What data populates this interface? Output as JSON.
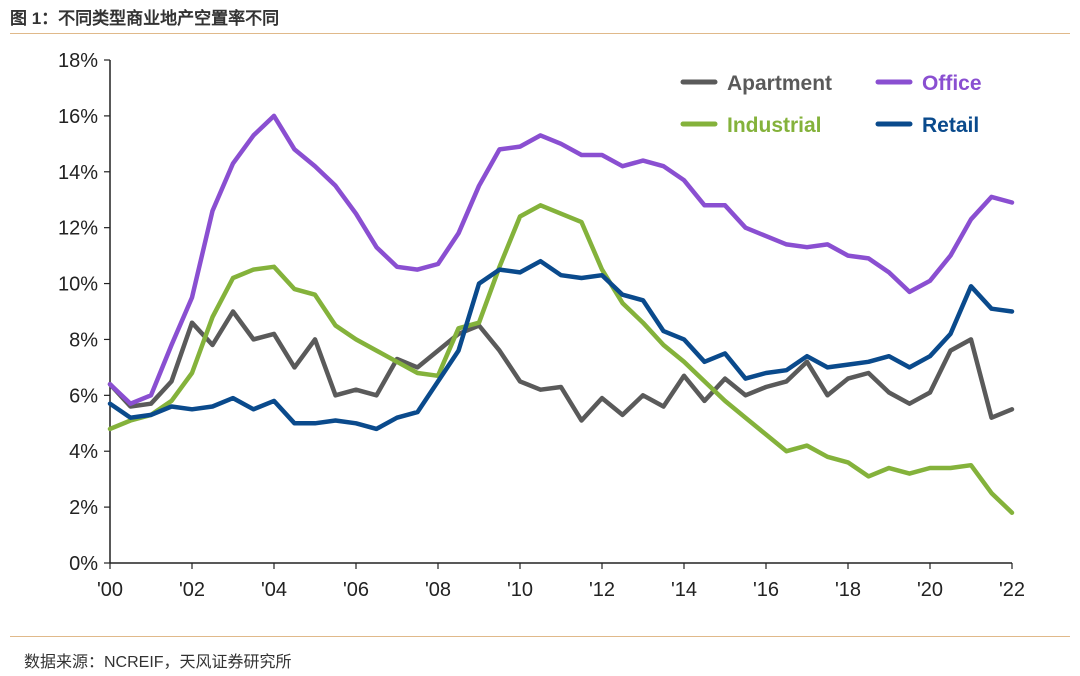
{
  "figure_title": "图 1：不同类型商业地产空置率不同",
  "source": "数据来源：NCREIF，天风证券研究所",
  "chart_data": {
    "type": "line",
    "title": "",
    "xlabel": "",
    "ylabel": "",
    "xlim": [
      2000,
      2022
    ],
    "ylim": [
      0,
      18
    ],
    "x_ticks": [
      2000,
      2002,
      2004,
      2006,
      2008,
      2010,
      2012,
      2014,
      2016,
      2018,
      2020,
      2022
    ],
    "x_tick_labels": [
      "'00",
      "'02",
      "'04",
      "'06",
      "'08",
      "'10",
      "'12",
      "'14",
      "'16",
      "'18",
      "'20",
      "'22"
    ],
    "y_ticks": [
      0,
      2,
      4,
      6,
      8,
      10,
      12,
      14,
      16,
      18
    ],
    "y_tick_labels": [
      "0%",
      "2%",
      "4%",
      "6%",
      "8%",
      "10%",
      "12%",
      "14%",
      "16%",
      "18%"
    ],
    "grid": false,
    "legend_position": "top-right",
    "x": [
      2000.0,
      2000.5,
      2001.0,
      2001.5,
      2002.0,
      2002.5,
      2003.0,
      2003.5,
      2004.0,
      2004.5,
      2005.0,
      2005.5,
      2006.0,
      2006.5,
      2007.0,
      2007.5,
      2008.0,
      2008.5,
      2009.0,
      2009.5,
      2010.0,
      2010.5,
      2011.0,
      2011.5,
      2012.0,
      2012.5,
      2013.0,
      2013.5,
      2014.0,
      2014.5,
      2015.0,
      2015.5,
      2016.0,
      2016.5,
      2017.0,
      2017.5,
      2018.0,
      2018.5,
      2019.0,
      2019.5,
      2020.0,
      2020.5,
      2021.0,
      2021.5,
      2022.0
    ],
    "series": [
      {
        "name": "Apartment",
        "color": "#5a5a5a",
        "values": [
          6.4,
          5.6,
          5.7,
          6.5,
          8.6,
          7.8,
          9.0,
          8.0,
          8.2,
          7.0,
          8.0,
          6.0,
          6.2,
          6.0,
          7.3,
          7.0,
          7.6,
          8.2,
          8.5,
          7.6,
          6.5,
          6.2,
          6.3,
          5.1,
          5.9,
          5.3,
          6.0,
          5.6,
          6.7,
          5.8,
          6.6,
          6.0,
          6.3,
          6.5,
          7.2,
          6.0,
          6.6,
          6.8,
          6.1,
          5.7,
          6.1,
          7.6,
          8.0,
          5.2,
          5.5
        ]
      },
      {
        "name": "Office",
        "color": "#8a4fd1",
        "values": [
          6.4,
          5.7,
          6.0,
          7.8,
          9.5,
          12.6,
          14.3,
          15.3,
          16.0,
          14.8,
          14.2,
          13.5,
          12.5,
          11.3,
          10.6,
          10.5,
          10.7,
          11.8,
          13.5,
          14.8,
          14.9,
          15.3,
          15.0,
          14.6,
          14.6,
          14.2,
          14.4,
          14.2,
          13.7,
          12.8,
          12.8,
          12.0,
          11.7,
          11.4,
          11.3,
          11.4,
          11.0,
          10.9,
          10.4,
          9.7,
          10.1,
          11.0,
          12.3,
          13.1,
          12.9
        ]
      },
      {
        "name": "Industrial",
        "color": "#84b23b",
        "values": [
          4.8,
          5.1,
          5.3,
          5.8,
          6.8,
          8.8,
          10.2,
          10.5,
          10.6,
          9.8,
          9.6,
          8.5,
          8.0,
          7.6,
          7.2,
          6.8,
          6.7,
          8.4,
          8.6,
          10.6,
          12.4,
          12.8,
          12.5,
          12.2,
          10.5,
          9.3,
          8.6,
          7.8,
          7.2,
          6.5,
          5.8,
          5.2,
          4.6,
          4.0,
          4.2,
          3.8,
          3.6,
          3.1,
          3.4,
          3.2,
          3.4,
          3.4,
          3.5,
          2.5,
          1.8
        ]
      },
      {
        "name": "Retail",
        "color": "#0a4a8c",
        "values": [
          5.7,
          5.2,
          5.3,
          5.6,
          5.5,
          5.6,
          5.9,
          5.5,
          5.8,
          5.0,
          5.0,
          5.1,
          5.0,
          4.8,
          5.2,
          5.4,
          6.5,
          7.6,
          10.0,
          10.5,
          10.4,
          10.8,
          10.3,
          10.2,
          10.3,
          9.6,
          9.4,
          8.3,
          8.0,
          7.2,
          7.5,
          6.6,
          6.8,
          6.9,
          7.4,
          7.0,
          7.1,
          7.2,
          7.4,
          7.0,
          7.4,
          8.2,
          9.9,
          9.1,
          9.0
        ]
      }
    ]
  }
}
